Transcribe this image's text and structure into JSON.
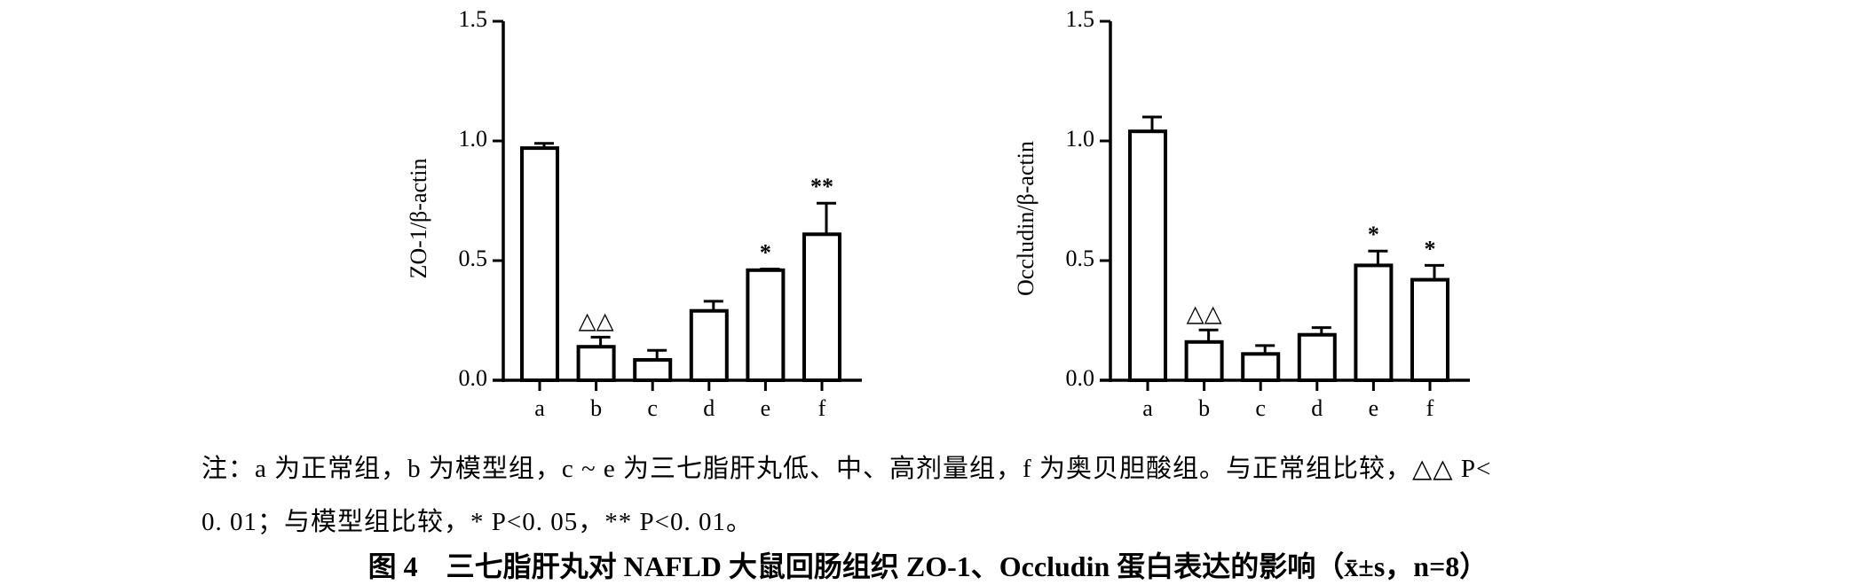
{
  "chart_data": [
    {
      "type": "bar",
      "y_label": "ZO-1/β-actin",
      "categories": [
        "a",
        "b",
        "c",
        "d",
        "e",
        "f"
      ],
      "values": [
        0.97,
        0.14,
        0.085,
        0.29,
        0.46,
        0.61
      ],
      "errors": [
        0.02,
        0.04,
        0.04,
        0.04,
        0.005,
        0.13
      ],
      "annotations": [
        null,
        "△△",
        null,
        null,
        "*",
        "**"
      ],
      "color": "#ffffff",
      "ylim": [
        0,
        1.5
      ],
      "yticks": [
        {
          "value": 0,
          "label": "0.0"
        },
        0.5,
        {
          "value": 1,
          "label": "1.0"
        },
        1.5
      ]
    },
    {
      "type": "bar",
      "y_label": "Occludin/β-actin",
      "categories": [
        "a",
        "b",
        "c",
        "d",
        "e",
        "f"
      ],
      "values": [
        1.04,
        0.16,
        0.11,
        0.19,
        0.48,
        0.42
      ],
      "errors": [
        0.06,
        0.05,
        0.035,
        0.03,
        0.06,
        0.06
      ],
      "annotations": [
        null,
        "△△",
        null,
        null,
        "*",
        "*"
      ],
      "color": "#ffffff",
      "ylim": [
        0,
        1.5
      ],
      "yticks": [
        {
          "value": 0,
          "label": "0.0"
        },
        0.5,
        {
          "value": 1,
          "label": "1.0"
        },
        1.5
      ]
    }
  ],
  "note": [
    "注：a 为正常组，b 为模型组，c ~ e 为三七脂肝丸低、中、高剂量组，f 为奥贝胆酸组。与正常组比较，△△ P<",
    "0. 01；与模型组比较，* P<0. 05，** P<0. 01。"
  ],
  "caption": "图 4　三七脂肝丸对 NAFLD 大鼠回肠组织 ZO-1、Occludin 蛋白表达的影响（x̄±s，n=8）"
}
